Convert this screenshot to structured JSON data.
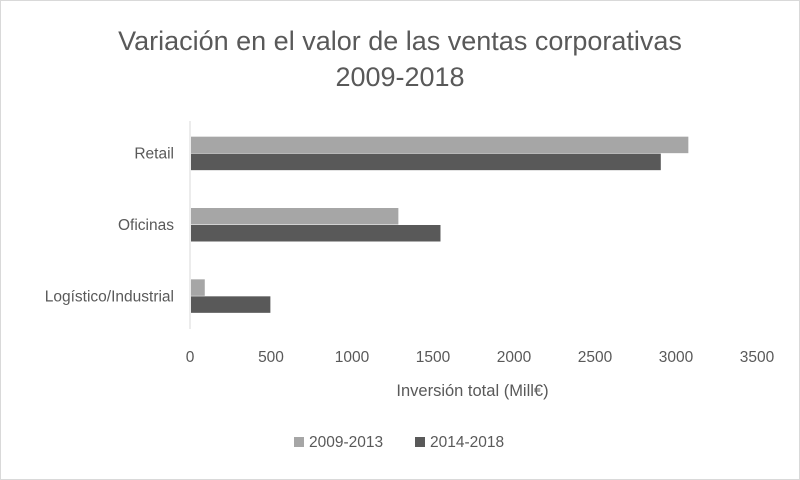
{
  "chart_data": {
    "type": "bar",
    "orientation": "horizontal",
    "title": "Variación en el valor de las ventas corporativas",
    "subtitle": "2009-2018",
    "categories": [
      "Retail",
      "Oficinas",
      "Logístico/Industrial"
    ],
    "series": [
      {
        "name": "2009-2013",
        "values": [
          3070,
          1280,
          85
        ],
        "color": "#a6a6a6"
      },
      {
        "name": "2014-2018",
        "values": [
          2900,
          1540,
          490
        ],
        "color": "#595959"
      }
    ],
    "xlabel": "Inversión total (Mill€)",
    "ylabel": "",
    "xlim": [
      0,
      3500
    ],
    "xticks": [
      "0",
      "500",
      "1000",
      "1500",
      "2000",
      "2500",
      "3000",
      "3500"
    ],
    "grid": false,
    "legend_position": "bottom"
  }
}
